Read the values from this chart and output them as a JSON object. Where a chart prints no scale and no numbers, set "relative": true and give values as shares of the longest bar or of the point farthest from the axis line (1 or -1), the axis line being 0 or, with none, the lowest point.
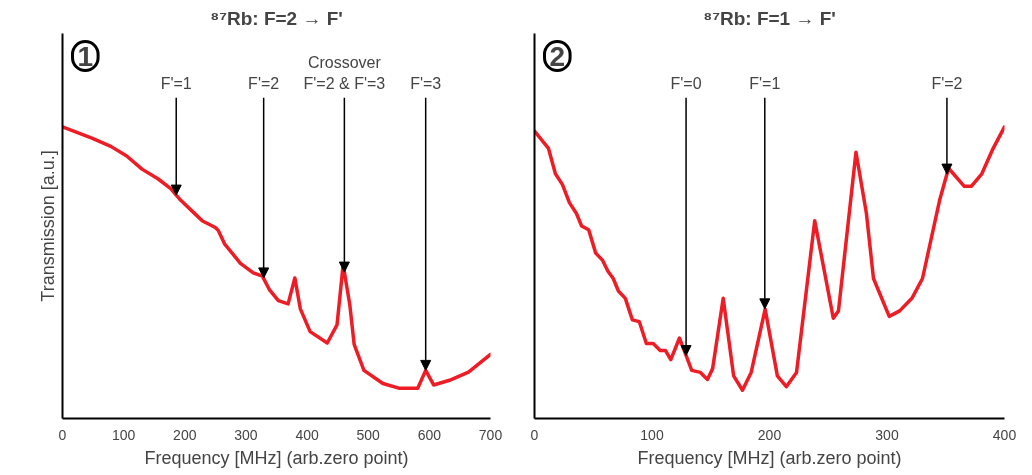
{
  "chart_data": [
    {
      "type": "line",
      "title": "⁸⁷Rb: F=2 → F'",
      "xlabel": "Frequency [MHz] (arb.zero point)",
      "ylabel": "Transmission [a.u.]",
      "relative": true,
      "tick_labels": "x",
      "grid": false,
      "xlim": [
        0,
        700
      ],
      "xticks": [
        0,
        100,
        200,
        300,
        400,
        500,
        600,
        700
      ],
      "annotations": [
        "1",
        {
          "text": "F'=1",
          "x": 186,
          "y": 0.766
        },
        {
          "text": "F'=2",
          "x": 329,
          "y": 0.482
        },
        {
          "text": "Crossover\nF'=2 & F'=3",
          "x": 461,
          "y": 0.502
        },
        {
          "text": "F'=3",
          "x": 594,
          "y": 0.165
        }
      ],
      "series": [
        {
          "color": "#ee1c25",
          "x": [
            0,
            48,
            79,
            105,
            130,
            156,
            177,
            193,
            218,
            229,
            250,
            255,
            265,
            291,
            312,
            327,
            338,
            353,
            369,
            380,
            389,
            405,
            433,
            449,
            459,
            470,
            477,
            493,
            524,
            550,
            581,
            594,
            607,
            633,
            664,
            700
          ],
          "values": [
            1.0,
            0.961,
            0.933,
            0.9,
            0.855,
            0.822,
            0.788,
            0.749,
            0.699,
            0.677,
            0.655,
            0.644,
            0.599,
            0.532,
            0.499,
            0.488,
            0.443,
            0.404,
            0.393,
            0.482,
            0.376,
            0.298,
            0.259,
            0.321,
            0.527,
            0.388,
            0.254,
            0.165,
            0.12,
            0.104,
            0.104,
            0.165,
            0.115,
            0.131,
            0.159,
            0.22
          ]
        }
      ]
    },
    {
      "type": "line",
      "title": "⁸⁷Rb: F=1 → F'",
      "xlabel": "Frequency [MHz] (arb.zero point)",
      "relative": true,
      "tick_labels": "x",
      "grid": false,
      "xlim": [
        0,
        400
      ],
      "xticks": [
        0,
        100,
        200,
        300,
        400
      ],
      "annotations": [
        "2",
        {
          "text": "F'=0",
          "x": 129,
          "y": 0.216
        },
        {
          "text": "F'=1",
          "x": 196,
          "y": 0.376
        },
        {
          "text": "F'=2",
          "x": 351,
          "y": 0.838
        }
      ],
      "series": [
        {
          "color": "#ee1c25",
          "x": [
            0,
            11.9,
            17.8,
            23.8,
            29.7,
            35.7,
            40.1,
            46.1,
            52.1,
            58,
            62.5,
            67,
            71.4,
            77.3,
            83.3,
            89.2,
            95.2,
            101,
            107,
            111.5,
            116,
            123.4,
            133.8,
            141.2,
            147.2,
            151.6,
            160.6,
            169.5,
            177,
            184.4,
            196.3,
            206.7,
            214.3,
            223,
            238.5,
            254.3,
            258.7,
            273.6,
            282.5,
            288.5,
            301.9,
            310.8,
            321.2,
            330.2,
            345,
            352.4,
            365.8,
            371.7,
            380.7,
            389.6,
            400
          ],
          "values": [
            0.985,
            0.926,
            0.839,
            0.802,
            0.74,
            0.703,
            0.66,
            0.647,
            0.567,
            0.542,
            0.505,
            0.48,
            0.437,
            0.412,
            0.338,
            0.332,
            0.257,
            0.257,
            0.233,
            0.233,
            0.202,
            0.276,
            0.165,
            0.158,
            0.134,
            0.171,
            0.412,
            0.146,
            0.097,
            0.158,
            0.375,
            0.146,
            0.109,
            0.158,
            0.678,
            0.344,
            0.369,
            0.913,
            0.703,
            0.48,
            0.35,
            0.369,
            0.412,
            0.48,
            0.752,
            0.858,
            0.796,
            0.796,
            0.839,
            0.92,
            1.0
          ]
        }
      ]
    }
  ]
}
